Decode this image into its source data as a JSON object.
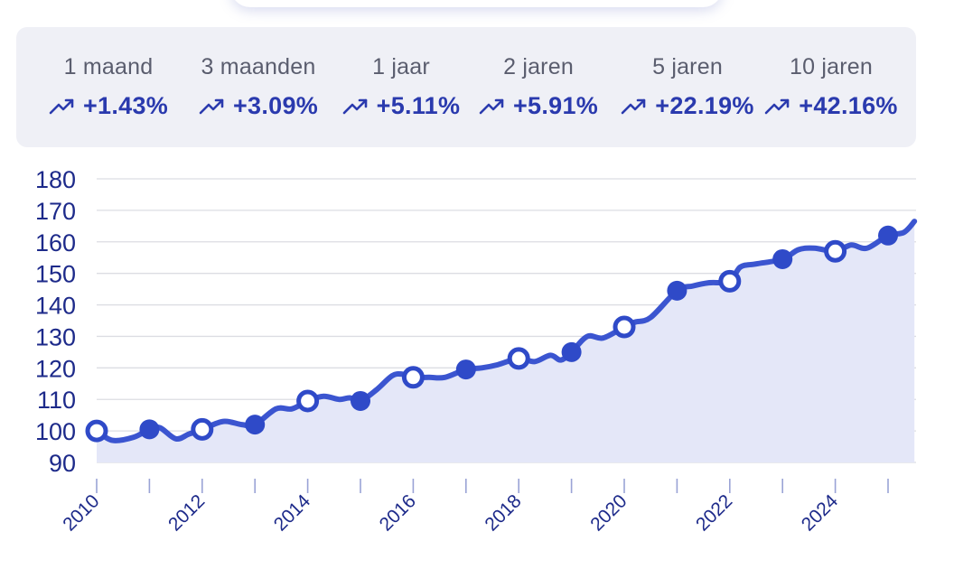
{
  "stats": [
    {
      "period": "1 maand",
      "change": "+1.43%"
    },
    {
      "period": "3 maanden",
      "change": "+3.09%"
    },
    {
      "period": "1 jaar",
      "change": "+5.11%"
    },
    {
      "period": "2 jaren",
      "change": "+5.91%"
    },
    {
      "period": "5 jaren",
      "change": "+22.19%"
    },
    {
      "period": "10 jaren",
      "change": "+42.16%"
    }
  ],
  "colors": {
    "line": "#3b55d0",
    "area": "#e4e7f8",
    "marker_fill": "#2f4ac8",
    "text": "#1d2a8a",
    "grid": "#dcdde3"
  },
  "chart_data": {
    "type": "area",
    "title": "",
    "xlabel": "",
    "ylabel": "",
    "ylim": [
      90,
      180
    ],
    "xlim": [
      2010,
      2025.5
    ],
    "y_ticks": [
      "90",
      "100",
      "110",
      "120",
      "130",
      "140",
      "150",
      "160",
      "170",
      "180"
    ],
    "x_ticks": [
      "2010",
      "2012",
      "2014",
      "2016",
      "2018",
      "2020",
      "2022",
      "2024"
    ],
    "grid": true,
    "series": [
      {
        "x": [
          2010,
          2010.3,
          2010.7,
          2011,
          2011.2,
          2011.5,
          2011.75,
          2012,
          2012.4,
          2012.75,
          2013,
          2013.4,
          2013.7,
          2014,
          2014.3,
          2014.6,
          2014.8,
          2015,
          2015.3,
          2015.6,
          2015.8,
          2016,
          2016.3,
          2016.6,
          2017,
          2017.3,
          2017.6,
          2018,
          2018.3,
          2018.6,
          2018.8,
          2019,
          2019.3,
          2019.6,
          2020,
          2020.2,
          2020.5,
          2021,
          2021.3,
          2021.6,
          2022,
          2022.2,
          2022.5,
          2023,
          2023.3,
          2023.6,
          2024,
          2024.3,
          2024.6,
          2025,
          2025.3,
          2025.5
        ],
        "y": [
          100,
          97,
          98,
          100.5,
          101,
          97.5,
          99,
          100.5,
          103,
          102,
          102,
          107,
          107,
          109.5,
          111,
          110,
          110.5,
          109.5,
          113,
          117.5,
          118,
          117,
          117,
          117,
          119.5,
          120,
          121,
          123,
          122,
          124,
          122.5,
          125,
          130,
          129.5,
          133,
          134.5,
          136,
          144.5,
          146,
          147,
          147.5,
          152,
          153,
          154.5,
          157.5,
          158,
          157,
          159,
          158,
          162,
          163,
          166.5
        ]
      }
    ],
    "markers": [
      {
        "x": 2010,
        "y": 100,
        "style": "hollow"
      },
      {
        "x": 2011,
        "y": 100.5,
        "style": "filled"
      },
      {
        "x": 2012,
        "y": 100.5,
        "style": "hollow"
      },
      {
        "x": 2013,
        "y": 102,
        "style": "filled"
      },
      {
        "x": 2014,
        "y": 109.5,
        "style": "hollow"
      },
      {
        "x": 2015,
        "y": 109.5,
        "style": "filled"
      },
      {
        "x": 2016,
        "y": 117,
        "style": "hollow"
      },
      {
        "x": 2017,
        "y": 119.5,
        "style": "filled"
      },
      {
        "x": 2018,
        "y": 123,
        "style": "hollow"
      },
      {
        "x": 2019,
        "y": 125,
        "style": "filled"
      },
      {
        "x": 2020,
        "y": 133,
        "style": "hollow"
      },
      {
        "x": 2021,
        "y": 144.5,
        "style": "filled"
      },
      {
        "x": 2022,
        "y": 147.5,
        "style": "hollow"
      },
      {
        "x": 2023,
        "y": 154.5,
        "style": "filled"
      },
      {
        "x": 2024,
        "y": 157,
        "style": "hollow"
      },
      {
        "x": 2025,
        "y": 162,
        "style": "filled"
      }
    ]
  }
}
